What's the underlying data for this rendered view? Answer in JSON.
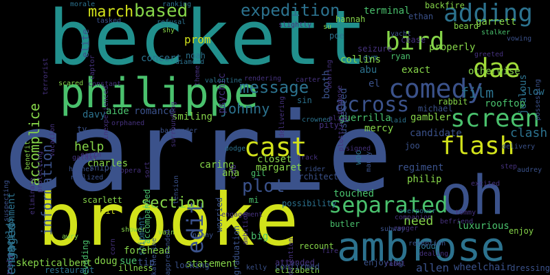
{
  "palette": {
    "yellow": "#d2e21b",
    "lime": "#86d549",
    "green": "#4ac16d",
    "seagreen": "#2db27d",
    "teal": "#1f968b",
    "tealblue": "#21908d",
    "blue": "#2c728e",
    "slate": "#3b528b",
    "indigo": "#46327e",
    "purple": "#440154"
  },
  "words": [
    {
      "text": "carrie",
      "color": "#3b528b"
    },
    {
      "text": "beckett",
      "color": "#21908d"
    },
    {
      "text": "brooke",
      "color": "#d2e21b"
    },
    {
      "text": "oh",
      "color": "#3b528b"
    },
    {
      "text": "ambrose",
      "color": "#2c728e"
    },
    {
      "text": "philippe",
      "color": "#4ac16d"
    },
    {
      "text": "comedy",
      "color": "#3b528b"
    },
    {
      "text": "bird",
      "color": "#86d549"
    },
    {
      "text": "adding",
      "color": "#2c728e"
    },
    {
      "text": "dae",
      "color": "#a0da39"
    },
    {
      "text": "screen",
      "color": "#4ac16d"
    },
    {
      "text": "flash",
      "color": "#d2e21b"
    },
    {
      "text": "across",
      "color": "#3b528b"
    },
    {
      "text": "cast",
      "color": "#d2e21b"
    },
    {
      "text": "separated",
      "color": "#4ac16d"
    },
    {
      "text": "expedition",
      "color": "#2c728e"
    },
    {
      "text": "message",
      "color": "#2c728e"
    },
    {
      "text": "based",
      "color": "#86d549"
    },
    {
      "text": "march",
      "color": "#d2e21b"
    },
    {
      "text": "information",
      "color": "#3b528b"
    },
    {
      "text": "accomplice",
      "color": "#86d549"
    },
    {
      "text": "johnny",
      "color": "#2c728e"
    },
    {
      "text": "film",
      "color": "#2c728e"
    },
    {
      "text": "plot",
      "color": "#3b528b"
    },
    {
      "text": "edit",
      "color": "#3b528b"
    },
    {
      "text": "section",
      "color": "#86d549"
    },
    {
      "text": "engaged",
      "color": "#2c728e"
    },
    {
      "text": "help",
      "color": "#86d549"
    },
    {
      "text": "need",
      "color": "#86d549"
    },
    {
      "text": "imprisonment",
      "color": "#2c728e"
    },
    {
      "text": "reconciles",
      "color": "#2c728e"
    },
    {
      "text": "elite",
      "color": "#3b528b"
    },
    {
      "text": "ranking",
      "color": "#2c728e"
    },
    {
      "text": "morale",
      "color": "#2c728e"
    },
    {
      "text": "tasked",
      "color": "#3b528b"
    },
    {
      "text": "refusal",
      "color": "#2c728e"
    },
    {
      "text": "shy",
      "color": "#86d549"
    },
    {
      "text": "psychic",
      "color": "#46327e"
    },
    {
      "text": "prom",
      "color": "#d2e21b"
    },
    {
      "text": "noah",
      "color": "#2c728e"
    },
    {
      "text": "concert",
      "color": "#2c728e"
    },
    {
      "text": "diamond",
      "color": "#2c728e"
    },
    {
      "text": "valentine",
      "color": "#2c728e"
    },
    {
      "text": "captor",
      "color": "#46327e"
    },
    {
      "text": "inexperienced",
      "color": "#46327e"
    },
    {
      "text": "terminal",
      "color": "#4ac16d"
    },
    {
      "text": "hannah",
      "color": "#86d549"
    },
    {
      "text": "backfire",
      "color": "#86d549"
    },
    {
      "text": "ethan",
      "color": "#3b528b"
    },
    {
      "text": "beard",
      "color": "#86d549"
    },
    {
      "text": "garrett",
      "color": "#86d549"
    },
    {
      "text": "poe",
      "color": "#2c728e"
    },
    {
      "text": "seizure",
      "color": "#46327e"
    },
    {
      "text": "gym",
      "color": "#2c728e"
    },
    {
      "text": "ryan",
      "color": "#4ac16d"
    },
    {
      "text": "cease",
      "color": "#46327e"
    },
    {
      "text": "properly",
      "color": "#86d549"
    },
    {
      "text": "yacht",
      "color": "#3b528b"
    },
    {
      "text": "stalker",
      "color": "#4ac16d"
    },
    {
      "text": "vowing",
      "color": "#3b528b"
    },
    {
      "text": "jealous",
      "color": "#2c728e"
    },
    {
      "text": "possessing",
      "color": "#3b528b"
    },
    {
      "text": "otherwise",
      "color": "#86d549"
    },
    {
      "text": "collins",
      "color": "#86d549"
    },
    {
      "text": "abu",
      "color": "#2c728e"
    },
    {
      "text": "exact",
      "color": "#86d549"
    },
    {
      "text": "slow",
      "color": "#2c728e"
    },
    {
      "text": "rooftop",
      "color": "#4ac16d"
    },
    {
      "text": "rabbit",
      "color": "#86d549"
    },
    {
      "text": "michael",
      "color": "#3b528b"
    },
    {
      "text": "suspected",
      "color": "#3b528b"
    },
    {
      "text": "booth",
      "color": "#3b528b"
    },
    {
      "text": "el",
      "color": "#3b528b"
    },
    {
      "text": "sin",
      "color": "#2c728e"
    },
    {
      "text": "gambler",
      "color": "#86d549"
    },
    {
      "text": "candidate",
      "color": "#3b528b"
    },
    {
      "text": "clash",
      "color": "#2c728e"
    },
    {
      "text": "guerrilla",
      "color": "#4ac16d"
    },
    {
      "text": "mercy",
      "color": "#86d549"
    },
    {
      "text": "pity",
      "color": "#46327e"
    },
    {
      "text": "crowned",
      "color": "#2c728e"
    },
    {
      "text": "davy",
      "color": "#2c728e"
    },
    {
      "text": "aide",
      "color": "#4ac16d"
    },
    {
      "text": "romance",
      "color": "#3b528b"
    },
    {
      "text": "smiling",
      "color": "#86d549"
    },
    {
      "text": "bartender",
      "color": "#3b528b"
    },
    {
      "text": "charles",
      "color": "#86d549"
    },
    {
      "text": "caring",
      "color": "#86d549"
    },
    {
      "text": "closet",
      "color": "#86d549"
    },
    {
      "text": "gil",
      "color": "#4ac16d"
    },
    {
      "text": "margaret",
      "color": "#86d549"
    },
    {
      "text": "cab",
      "color": "#46327e"
    },
    {
      "text": "ana",
      "color": "#86d549"
    },
    {
      "text": "architect",
      "color": "#3b528b"
    },
    {
      "text": "regiment",
      "color": "#3b528b"
    },
    {
      "text": "joo",
      "color": "#3b528b"
    },
    {
      "text": "philip",
      "color": "#86d549"
    },
    {
      "text": "sniper",
      "color": "#3b528b"
    },
    {
      "text": "higher",
      "color": "#3b528b"
    },
    {
      "text": "shipment",
      "color": "#2c728e"
    },
    {
      "text": "accompanied",
      "color": "#4ac16d"
    },
    {
      "text": "worried",
      "color": "#3b528b"
    },
    {
      "text": "touched",
      "color": "#4ac16d"
    },
    {
      "text": "possibility",
      "color": "#2c728e"
    },
    {
      "text": "scarlett",
      "color": "#86d549"
    },
    {
      "text": "bait",
      "color": "#d2e21b"
    },
    {
      "text": "evading",
      "color": "#4ac16d"
    },
    {
      "text": "butler",
      "color": "#4ac16d"
    },
    {
      "text": "luxurious",
      "color": "#4ac16d"
    },
    {
      "text": "skeptical",
      "color": "#86d549"
    },
    {
      "text": "bent",
      "color": "#86d549"
    },
    {
      "text": "doug",
      "color": "#86d549"
    },
    {
      "text": "sue",
      "color": "#4ac16d"
    },
    {
      "text": "tip",
      "color": "#3b528b"
    },
    {
      "text": "statement",
      "color": "#86d549"
    },
    {
      "text": "kelly",
      "color": "#3b528b"
    },
    {
      "text": "attended",
      "color": "#46327e"
    },
    {
      "text": "elizabeth",
      "color": "#86d549"
    },
    {
      "text": "enjoying",
      "color": "#3b528b"
    },
    {
      "text": "allen",
      "color": "#3b528b"
    },
    {
      "text": "wheelchair",
      "color": "#3b528b"
    },
    {
      "text": "dressing",
      "color": "#3b528b"
    },
    {
      "text": "forehead",
      "color": "#86d549"
    },
    {
      "text": "recount",
      "color": "#86d549"
    },
    {
      "text": "confirmed",
      "color": "#3b528b"
    },
    {
      "text": "illness",
      "color": "#86d549"
    },
    {
      "text": "locking",
      "color": "#3b528b"
    },
    {
      "text": "restaurant",
      "color": "#2c728e"
    },
    {
      "text": "shower",
      "color": "#86d549"
    },
    {
      "text": "vain",
      "color": "#86d549"
    },
    {
      "text": "nanny",
      "color": "#3b528b"
    },
    {
      "text": "loud",
      "color": "#2c728e"
    },
    {
      "text": "enjoy",
      "color": "#86d549"
    },
    {
      "text": "graduation",
      "color": "#3b528b"
    },
    {
      "text": "big",
      "color": "#4ac16d"
    },
    {
      "text": "mi",
      "color": "#4ac16d"
    },
    {
      "text": "corn",
      "color": "#46327e"
    },
    {
      "text": "awry",
      "color": "#86d549"
    },
    {
      "text": "scared",
      "color": "#86d549"
    },
    {
      "text": "opera",
      "color": "#46327e"
    },
    {
      "text": "galaxy",
      "color": "#46327e"
    },
    {
      "text": "tv",
      "color": "#3b528b"
    },
    {
      "text": "vacation",
      "color": "#46327e"
    },
    {
      "text": "dodge",
      "color": "#2c728e"
    },
    {
      "text": "subway",
      "color": "#3b528b"
    },
    {
      "text": "overpower",
      "color": "#2c728e"
    },
    {
      "text": "woo",
      "color": "#2c728e"
    },
    {
      "text": "suspecting",
      "color": "#3b528b"
    },
    {
      "text": "earth",
      "color": "#46327e"
    },
    {
      "text": "realized",
      "color": "#3b528b"
    },
    {
      "text": "katherine",
      "color": "#3b528b"
    },
    {
      "text": "apprehended",
      "color": "#3b528b"
    },
    {
      "text": "tension",
      "color": "#3b528b"
    },
    {
      "text": "rider",
      "color": "#3b528b"
    },
    {
      "text": "track",
      "color": "#46327e"
    },
    {
      "text": "delivery",
      "color": "#3b528b"
    },
    {
      "text": "reception",
      "color": "#3b528b"
    },
    {
      "text": "ranger",
      "color": "#46327e"
    },
    {
      "text": "step",
      "color": "#46327e"
    },
    {
      "text": "audrey",
      "color": "#3b528b"
    },
    {
      "text": "manny",
      "color": "#3b528b"
    },
    {
      "text": "companion",
      "color": "#46327e"
    },
    {
      "text": "detention",
      "color": "#46327e"
    },
    {
      "text": "dealing",
      "color": "#46327e"
    },
    {
      "text": "laid",
      "color": "#2c728e"
    },
    {
      "text": "signed",
      "color": "#46327e"
    },
    {
      "text": "plotting",
      "color": "#46327e"
    },
    {
      "text": "alias",
      "color": "#46327e"
    },
    {
      "text": "propose",
      "color": "#46327e"
    },
    {
      "text": "delivering",
      "color": "#46327e"
    },
    {
      "text": "bearing",
      "color": "#46327e"
    },
    {
      "text": "slightly",
      "color": "#46327e"
    },
    {
      "text": "su",
      "color": "#86d549"
    },
    {
      "text": "benefit",
      "color": "#86d549"
    },
    {
      "text": "terrorist",
      "color": "#46327e"
    },
    {
      "text": "eliminate",
      "color": "#46327e"
    },
    {
      "text": "protecting",
      "color": "#46327e"
    },
    {
      "text": "constant",
      "color": "#46327e"
    },
    {
      "text": "theme",
      "color": "#46327e"
    },
    {
      "text": "surrounding",
      "color": "#46327e"
    },
    {
      "text": "rendering",
      "color": "#46327e"
    },
    {
      "text": "carter",
      "color": "#46327e"
    },
    {
      "text": "greeted",
      "color": "#46327e"
    },
    {
      "text": "sort",
      "color": "#46327e"
    },
    {
      "text": "excited",
      "color": "#46327e"
    },
    {
      "text": "orphaned",
      "color": "#46327e"
    },
    {
      "text": "ambition",
      "color": "#46327e"
    },
    {
      "text": "engagement",
      "color": "#46327e"
    },
    {
      "text": "fire",
      "color": "#46327e"
    },
    {
      "text": "rebel",
      "color": "#46327e"
    },
    {
      "text": "befriend",
      "color": "#46327e"
    },
    {
      "text": "tommy",
      "color": "#46327e"
    },
    {
      "text": "truly",
      "color": "#46327e"
    },
    {
      "text": "necessitates",
      "color": "#46327e"
    },
    {
      "text": "suggesting",
      "color": "#46327e"
    }
  ]
}
